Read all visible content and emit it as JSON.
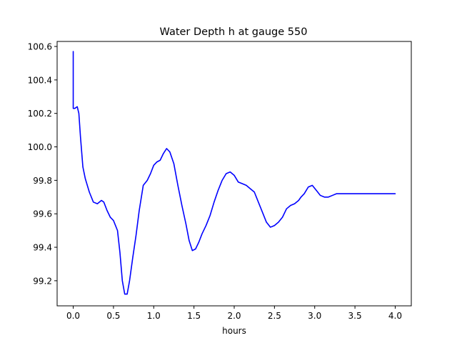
{
  "chart_data": {
    "type": "line",
    "title": "Water Depth h at gauge 550",
    "xlabel": "hours",
    "ylabel": "",
    "xlim": [
      -0.2,
      4.2
    ],
    "ylim": [
      99.05,
      100.63
    ],
    "xticks": [
      0.0,
      0.5,
      1.0,
      1.5,
      2.0,
      2.5,
      3.0,
      3.5,
      4.0
    ],
    "xtick_labels": [
      "0.0",
      "0.5",
      "1.0",
      "1.5",
      "2.0",
      "2.5",
      "3.0",
      "3.5",
      "4.0"
    ],
    "yticks": [
      99.2,
      99.4,
      99.6,
      99.8,
      100.0,
      100.2,
      100.4,
      100.6
    ],
    "ytick_labels": [
      "99.2",
      "99.4",
      "99.6",
      "99.8",
      "100.0",
      "100.2",
      "100.4",
      "100.6"
    ],
    "grid": false,
    "series": [
      {
        "color": "#0000ff",
        "x": [
          0.0,
          0.0,
          0.0,
          0.02,
          0.05,
          0.07,
          0.09,
          0.12,
          0.15,
          0.2,
          0.25,
          0.3,
          0.35,
          0.38,
          0.42,
          0.46,
          0.5,
          0.55,
          0.58,
          0.61,
          0.64,
          0.67,
          0.7,
          0.74,
          0.78,
          0.82,
          0.87,
          0.92,
          0.96,
          1.0,
          1.04,
          1.08,
          1.12,
          1.16,
          1.2,
          1.25,
          1.3,
          1.35,
          1.4,
          1.44,
          1.48,
          1.52,
          1.56,
          1.6,
          1.65,
          1.7,
          1.75,
          1.8,
          1.85,
          1.9,
          1.95,
          2.0,
          2.05,
          2.1,
          2.15,
          2.2,
          2.25,
          2.3,
          2.35,
          2.4,
          2.45,
          2.5,
          2.55,
          2.6,
          2.65,
          2.7,
          2.75,
          2.8,
          2.83,
          2.87,
          2.92,
          2.97,
          3.02,
          3.07,
          3.12,
          3.17,
          3.22,
          3.27,
          3.32,
          3.37,
          3.42,
          3.47,
          3.52,
          3.57,
          3.62,
          3.67,
          3.72,
          3.77,
          3.82,
          3.87,
          3.92,
          3.97,
          4.0
        ],
        "y": [
          100.57,
          100.4,
          100.23,
          100.23,
          100.24,
          100.2,
          100.06,
          99.88,
          99.81,
          99.73,
          99.67,
          99.66,
          99.68,
          99.67,
          99.62,
          99.58,
          99.56,
          99.5,
          99.37,
          99.2,
          99.12,
          99.12,
          99.2,
          99.34,
          99.47,
          99.62,
          99.77,
          99.8,
          99.84,
          99.89,
          99.91,
          99.92,
          99.96,
          99.99,
          99.97,
          99.9,
          99.77,
          99.65,
          99.54,
          99.44,
          99.38,
          99.39,
          99.43,
          99.48,
          99.53,
          99.59,
          99.67,
          99.74,
          99.8,
          99.84,
          99.85,
          99.83,
          99.79,
          99.78,
          99.77,
          99.75,
          99.73,
          99.67,
          99.61,
          99.55,
          99.52,
          99.53,
          99.55,
          99.58,
          99.63,
          99.65,
          99.66,
          99.68,
          99.7,
          99.72,
          99.76,
          99.77,
          99.74,
          99.71,
          99.7,
          99.7,
          99.71,
          99.72,
          99.72,
          99.72,
          99.72,
          99.72,
          99.72,
          99.72,
          99.72,
          99.72,
          99.72,
          99.72,
          99.72,
          99.72,
          99.72,
          99.72,
          99.72
        ]
      }
    ]
  }
}
